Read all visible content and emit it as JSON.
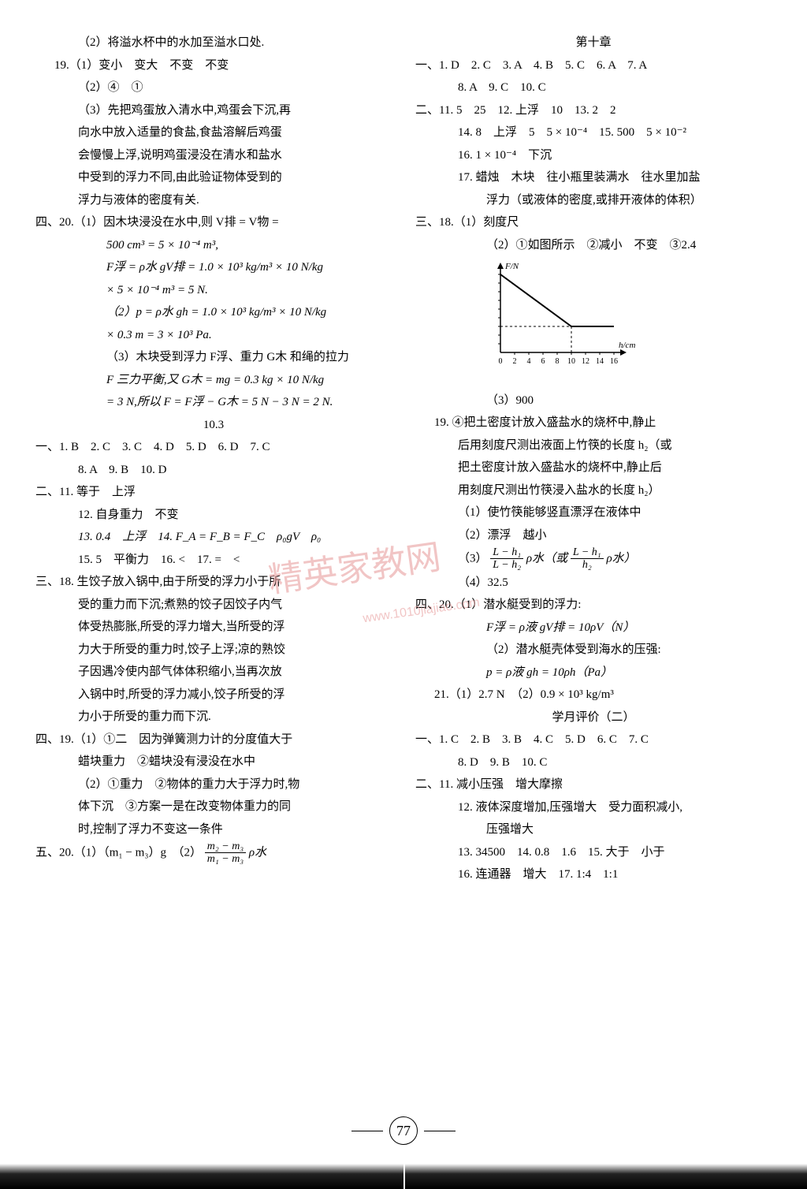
{
  "left": {
    "l1": "（2）将溢水杯中的水加至溢水口处.",
    "l2": "19.（1）变小　变大　不变　不变",
    "l3": "（2）④　①",
    "l4": "（3）先把鸡蛋放入清水中,鸡蛋会下沉,再",
    "l5": "向水中放入适量的食盐,食盐溶解后鸡蛋",
    "l6": "会慢慢上浮,说明鸡蛋浸没在清水和盐水",
    "l7": "中受到的浮力不同,由此验证物体受到的",
    "l8": "浮力与液体的密度有关.",
    "l9": "四、20.（1）因木块浸没在水中,则 V排 = V物 =",
    "l10": "500 cm³ = 5 × 10⁻⁴ m³,",
    "l11": "F浮 = ρ水 gV排 = 1.0 × 10³ kg/m³ × 10 N/kg",
    "l12": "× 5 × 10⁻⁴ m³ = 5 N.",
    "l13": "（2）p = ρ水 gh = 1.0 × 10³ kg/m³ × 10 N/kg",
    "l14": "× 0.3 m = 3 × 10³ Pa.",
    "l15": "（3）木块受到浮力 F浮、重力 G木 和绳的拉力",
    "l16": "F 三力平衡,又 G木 = mg = 0.3 kg × 10 N/kg",
    "l17": "= 3 N,所以 F = F浮 − G木 = 5 N − 3 N = 2 N.",
    "sec103": "10.3",
    "l18": "一、1. B　2. C　3. C　4. D　5. D　6. D　7. C",
    "l19": "8. A　9. B　10. D",
    "l20": "二、11. 等于　上浮",
    "l21": "12. 自身重力　不变",
    "l22": "13. 0.4　上浮　14. F_A = F_B = F_C　ρ₀gV　ρ₀",
    "l23": "15. 5　平衡力　16. <　17. =　<",
    "l24": "三、18. 生饺子放入锅中,由于所受的浮力小于所",
    "l25": "受的重力而下沉;煮熟的饺子因饺子内气",
    "l26": "体受热膨胀,所受的浮力增大,当所受的浮",
    "l27": "力大于所受的重力时,饺子上浮;凉的熟饺",
    "l28": "子因遇冷使内部气体体积缩小,当再次放",
    "l29": "入锅中时,所受的浮力减小,饺子所受的浮",
    "l30": "力小于所受的重力而下沉.",
    "l31": "四、19.（1）①二　因为弹簧测力计的分度值大于",
    "l32": "蜡块重力　②蜡块没有浸没在水中",
    "l33": "（2）①重力　②物体的重力大于浮力时,物",
    "l34": "体下沉　③方案一是在改变物体重力的同",
    "l35": "时,控制了浮力不变这一条件",
    "l36a": "五、20.（1）（m₁ − m₃）g　（2）",
    "l36b_num": "m₂ − m₃",
    "l36b_den": "m₁ − m₃",
    "l36c": "ρ水"
  },
  "right": {
    "sec10": "第十章",
    "r1": "一、1. D　2. C　3. A　4. B　5. C　6. A　7. A",
    "r2": "8. A　9. C　10. C",
    "r3": "二、11. 5　25　12. 上浮　10　13. 2　2",
    "r4": "14. 8　上浮　5　5 × 10⁻⁴　15. 500　5 × 10⁻²",
    "r5": "16. 1 × 10⁻⁴　下沉",
    "r6": "17. 蜡烛　木块　往小瓶里装满水　往水里加盐",
    "r7": "浮力（或液体的密度,或排开液体的体积）",
    "r8": "三、18.（1）刻度尺",
    "r9": "（2）①如图所示　②减小　不变　③2.4",
    "r10": "（3）900",
    "r11": "19. ④把土密度计放入盛盐水的烧杯中,静止",
    "r12": "后用刻度尺测出液面上竹筷的长度 h₂（或",
    "r13": "把土密度计放入盛盐水的烧杯中,静止后",
    "r14": "用刻度尺测出竹筷浸入盐水的长度 h₂）",
    "r15": "（1）使竹筷能够竖直漂浮在液体中",
    "r16": "（2）漂浮　越小",
    "r17a": "（3）",
    "r17_num1": "L − h₁",
    "r17_den1": "L − h₂",
    "r17b": "ρ水（或",
    "r17_num2": "L − h₁",
    "r17_den2": "h₂",
    "r17c": "ρ水）",
    "r18": "（4）32.5",
    "r19": "四、20.（1）潜水艇受到的浮力:",
    "r20": "F浮 = ρ液 gV排 = 10ρV（N）",
    "r21": "（2）潜水艇壳体受到海水的压强:",
    "r22": "p = ρ液 gh = 10ρh（Pa）",
    "r23": "21.（1）2.7 N　（2）0.9 × 10³ kg/m³",
    "sec_eval": "学月评价（二）",
    "r24": "一、1. C　2. B　3. B　4. C　5. D　6. C　7. C",
    "r25": "8. D　9. B　10. C",
    "r26": "二、11. 减小压强　增大摩擦",
    "r27": "12. 液体深度增加,压强增大　受力面积减小,",
    "r28": "压强增大",
    "r29": "13. 34500　14. 0.8　1.6　15. 大于　小于",
    "r30": "16. 连通器　增大　17. 1:4　1:1"
  },
  "chart": {
    "ylabel": "F/N",
    "xlabel": "h/cm",
    "xticks": [
      "0",
      "2",
      "4",
      "6",
      "8",
      "10",
      "12",
      "14",
      "16"
    ],
    "ymax": 9,
    "line_points": [
      [
        0,
        9
      ],
      [
        10,
        3
      ],
      [
        16,
        3
      ]
    ],
    "dashed_x": 10,
    "dashed_y": 3,
    "grid_color": "#000",
    "line_color": "#000",
    "w": 180,
    "h": 140,
    "ox": 28,
    "oy": 118,
    "sx": 9,
    "sy": 11
  },
  "watermark": "精英家教网",
  "watermark_url": "www.1010jiajiao.com",
  "pagenum": "77"
}
